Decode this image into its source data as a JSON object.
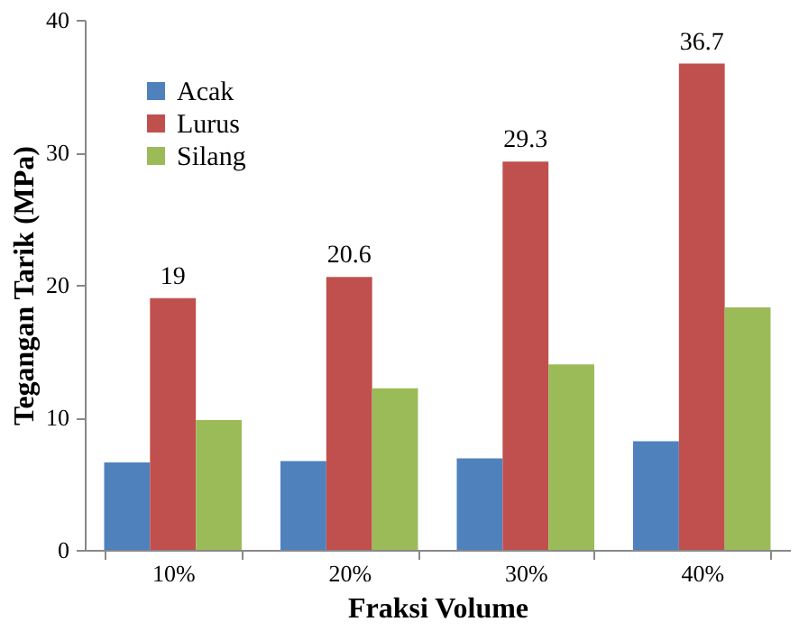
{
  "chart_data": {
    "type": "bar",
    "xlabel": "Fraksi Volume",
    "ylabel": "Tegangan Tarik (MPa)",
    "categories": [
      "10%",
      "20%",
      "30%",
      "40%"
    ],
    "series": [
      {
        "name": "Acak",
        "color": "#4f81bd",
        "values": [
          6.6,
          6.7,
          6.9,
          8.2
        ]
      },
      {
        "name": "Lurus",
        "color": "#c0504d",
        "values": [
          19,
          20.6,
          29.3,
          36.7
        ],
        "value_labels": [
          "19",
          "20.6",
          "29.3",
          "36.7"
        ]
      },
      {
        "name": "Silang",
        "color": "#9bbb59",
        "values": [
          9.8,
          12.2,
          14.0,
          18.3
        ]
      }
    ],
    "ylim": [
      0,
      40
    ],
    "yticks": [
      0,
      10,
      20,
      30,
      40
    ],
    "grid": false,
    "legend": "top left"
  }
}
